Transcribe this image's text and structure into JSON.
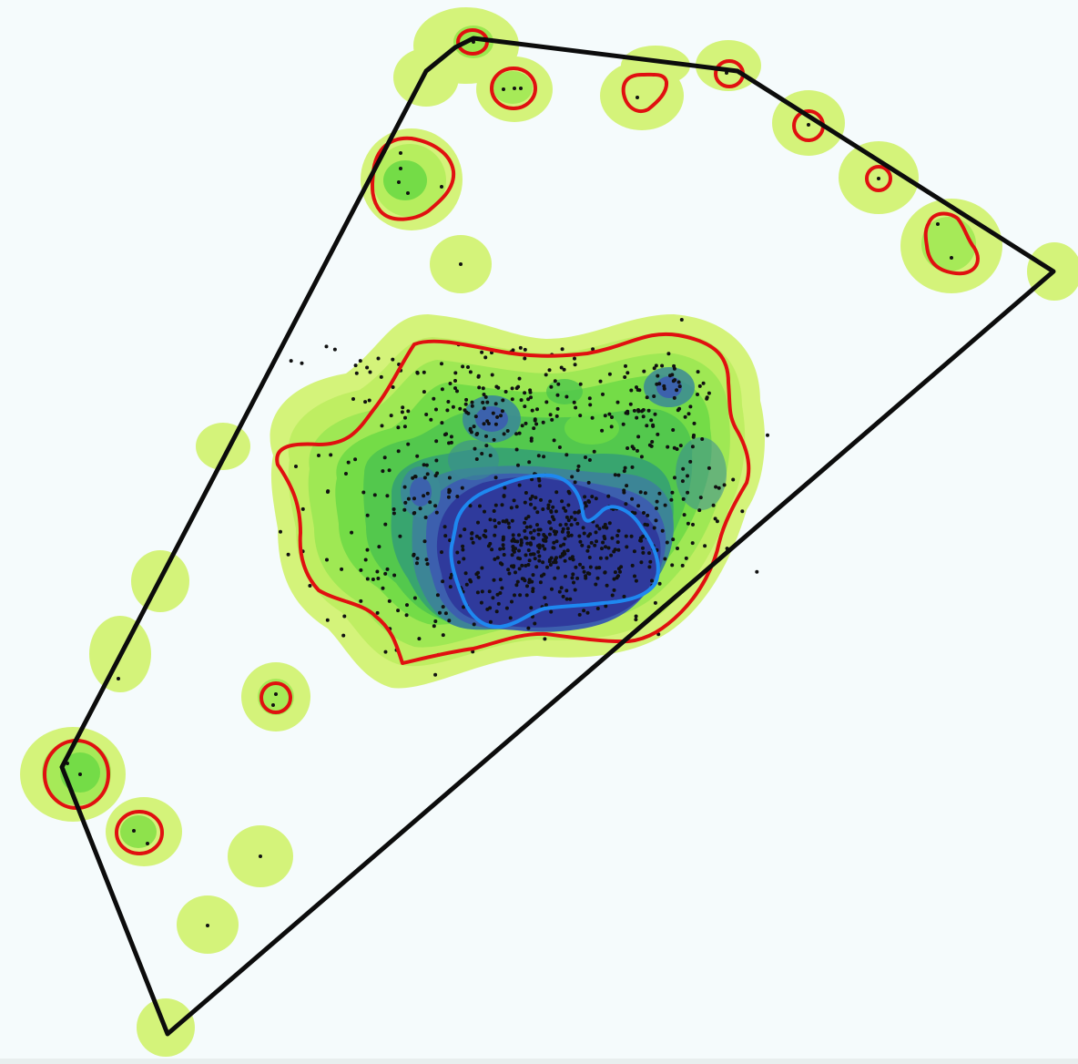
{
  "map": {
    "kind": "kernel-density-map",
    "colors": {
      "background": "#f5fbfc",
      "density_ramp": [
        "#d8f57c",
        "#c0f060",
        "#9be84f",
        "#6edc45",
        "#4ec64c",
        "#38a86e",
        "#3b8a95",
        "#3c62ad",
        "#2f3a9e",
        "#242a7f"
      ],
      "boundary": "#0c0c0c",
      "contour_outer": "#e01010",
      "contour_inner": "#1e88f0",
      "points": "#111111"
    },
    "layers": [
      "density-surface",
      "point-events",
      "outer-contour",
      "inner-contour",
      "study-area-boundary"
    ]
  }
}
